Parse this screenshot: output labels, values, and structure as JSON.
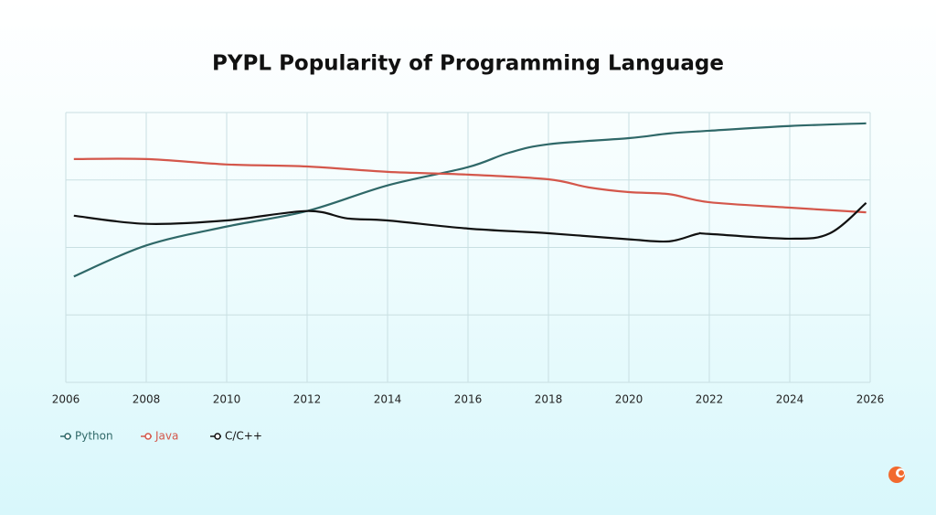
{
  "chart_data": {
    "type": "line",
    "title": "PYPL Popularity of Programming Language",
    "xlim": [
      2006,
      2026
    ],
    "xticks": [
      2006,
      2008,
      2010,
      2012,
      2014,
      2016,
      2018,
      2020,
      2022,
      2024,
      2026
    ],
    "ylim": [
      0,
      4
    ],
    "ygrid": [
      0,
      1,
      2,
      3,
      4
    ],
    "grid": true,
    "legend": "bottom-left",
    "series": [
      {
        "name": "Python",
        "color": "#2f6868",
        "x": [
          2006.2,
          2008,
          2010,
          2012,
          2014,
          2016,
          2017,
          2018,
          2020,
          2021,
          2022,
          2024,
          2025.9
        ],
        "values": [
          1.57,
          2.03,
          2.31,
          2.54,
          2.92,
          3.19,
          3.4,
          3.53,
          3.62,
          3.69,
          3.73,
          3.8,
          3.84
        ]
      },
      {
        "name": "Java",
        "color": "#d4574b",
        "x": [
          2006.2,
          2008,
          2010,
          2012,
          2014,
          2016,
          2018,
          2019,
          2020,
          2021,
          2022,
          2024,
          2025.9
        ],
        "values": [
          3.31,
          3.31,
          3.23,
          3.2,
          3.12,
          3.08,
          3.01,
          2.89,
          2.82,
          2.79,
          2.67,
          2.59,
          2.52
        ]
      },
      {
        "name": "C/C++",
        "color": "#111111",
        "x": [
          2006.2,
          2008,
          2010,
          2012,
          2013,
          2014,
          2016,
          2018,
          2020,
          2021,
          2021.7,
          2022,
          2024,
          2025,
          2025.9
        ],
        "values": [
          2.47,
          2.35,
          2.4,
          2.54,
          2.43,
          2.4,
          2.28,
          2.21,
          2.12,
          2.09,
          2.2,
          2.2,
          2.13,
          2.21,
          2.66
        ]
      }
    ]
  }
}
